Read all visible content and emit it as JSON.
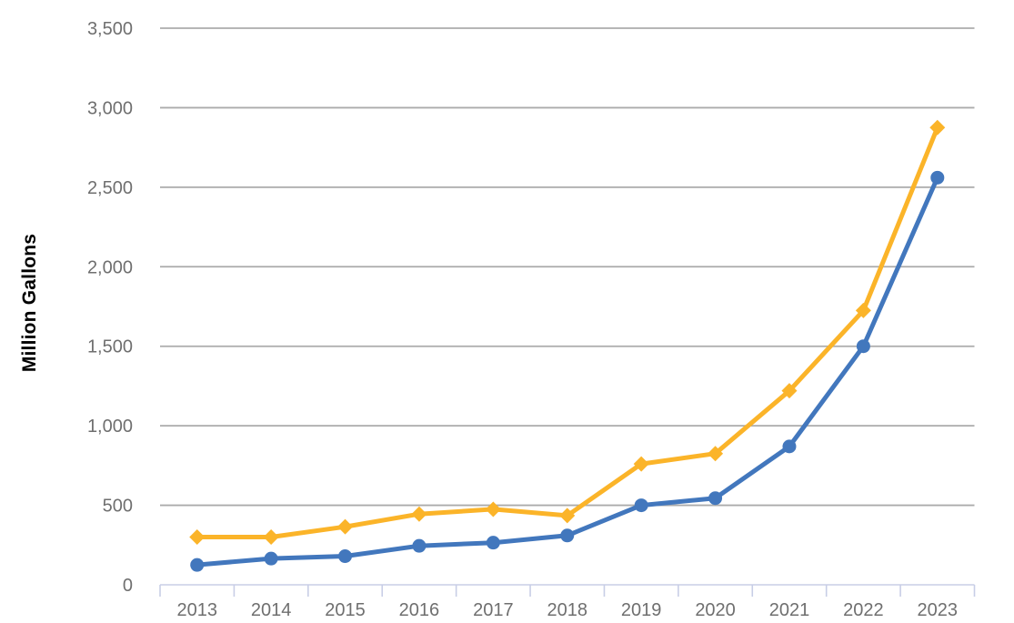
{
  "chart_data": {
    "type": "line",
    "title": "",
    "xlabel": "",
    "ylabel": "Million Gallons",
    "categories": [
      "2013",
      "2014",
      "2015",
      "2016",
      "2017",
      "2018",
      "2019",
      "2020",
      "2021",
      "2022",
      "2023"
    ],
    "series": [
      {
        "name": "yellow-diamond-series",
        "marker": "diamond",
        "color": "#FBB429",
        "values": [
          300,
          300,
          365,
          445,
          475,
          435,
          760,
          825,
          1220,
          1725,
          2875
        ]
      },
      {
        "name": "blue-circle-series",
        "marker": "circle",
        "color": "#4277BD",
        "values": [
          125,
          165,
          180,
          245,
          265,
          310,
          500,
          545,
          870,
          1500,
          2560
        ]
      }
    ],
    "y_ticks": [
      0,
      500,
      1000,
      1500,
      2000,
      2500,
      3000,
      3500
    ],
    "y_tick_labels": [
      "0",
      "500",
      "1,000",
      "1,500",
      "2,000",
      "2,500",
      "3,000",
      "3,500"
    ],
    "ylim": [
      0,
      3500
    ],
    "grid": true,
    "legend_position": "none",
    "colors": {
      "gridline": "#ababab",
      "axis_line": "#c8cee6",
      "tick_label": "#6f6f6f",
      "axis_title": "#000000",
      "background": "#ffffff"
    }
  }
}
